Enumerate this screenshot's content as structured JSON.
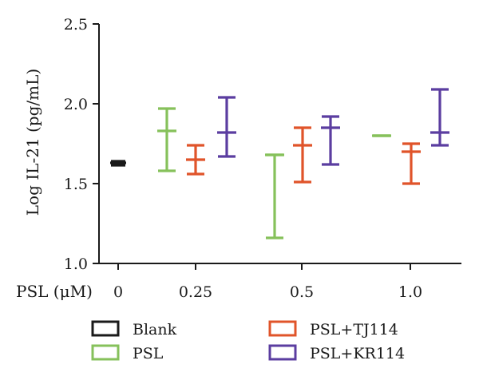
{
  "chart_data": {
    "type": "scatter",
    "ylabel": "Log IL-21 (pg/mL)",
    "xaxis_prefix": "PSL (μM)",
    "ylim": [
      1.0,
      2.5
    ],
    "yticks": [
      "1.0",
      "1.5",
      "2.0",
      "2.5"
    ],
    "categories": [
      "0",
      "0.25",
      "0.5",
      "1.0"
    ],
    "series": [
      {
        "name": "Blank",
        "color": "#1a1a1a",
        "points": [
          {
            "category": "0",
            "mean": 1.63,
            "low": 1.615,
            "high": 1.64
          }
        ]
      },
      {
        "name": "PSL",
        "color": "#86c15b",
        "points": [
          {
            "category": "0.25",
            "mean": 1.83,
            "low": 1.58,
            "high": 1.97
          },
          {
            "category": "0.5",
            "mean": 1.68,
            "low": 1.16,
            "high": 1.68
          },
          {
            "category": "1.0",
            "mean": 1.8,
            "low": 1.8,
            "high": 1.8
          }
        ]
      },
      {
        "name": "PSL+TJ114",
        "color": "#e0542a",
        "points": [
          {
            "category": "0.25",
            "mean": 1.65,
            "low": 1.56,
            "high": 1.74
          },
          {
            "category": "0.5",
            "mean": 1.74,
            "low": 1.51,
            "high": 1.85
          },
          {
            "category": "1.0",
            "mean": 1.7,
            "low": 1.5,
            "high": 1.75
          }
        ]
      },
      {
        "name": "PSL+KR114",
        "color": "#5b3da0",
        "points": [
          {
            "category": "0.25",
            "mean": 1.82,
            "low": 1.67,
            "high": 2.04
          },
          {
            "category": "0.5",
            "mean": 1.85,
            "low": 1.62,
            "high": 1.92
          },
          {
            "category": "1.0",
            "mean": 1.82,
            "low": 1.74,
            "high": 2.09
          }
        ]
      }
    ],
    "legend": [
      "Blank",
      "PSL",
      "PSL+TJ114",
      "PSL+KR114"
    ],
    "legend_position": "bottom"
  }
}
